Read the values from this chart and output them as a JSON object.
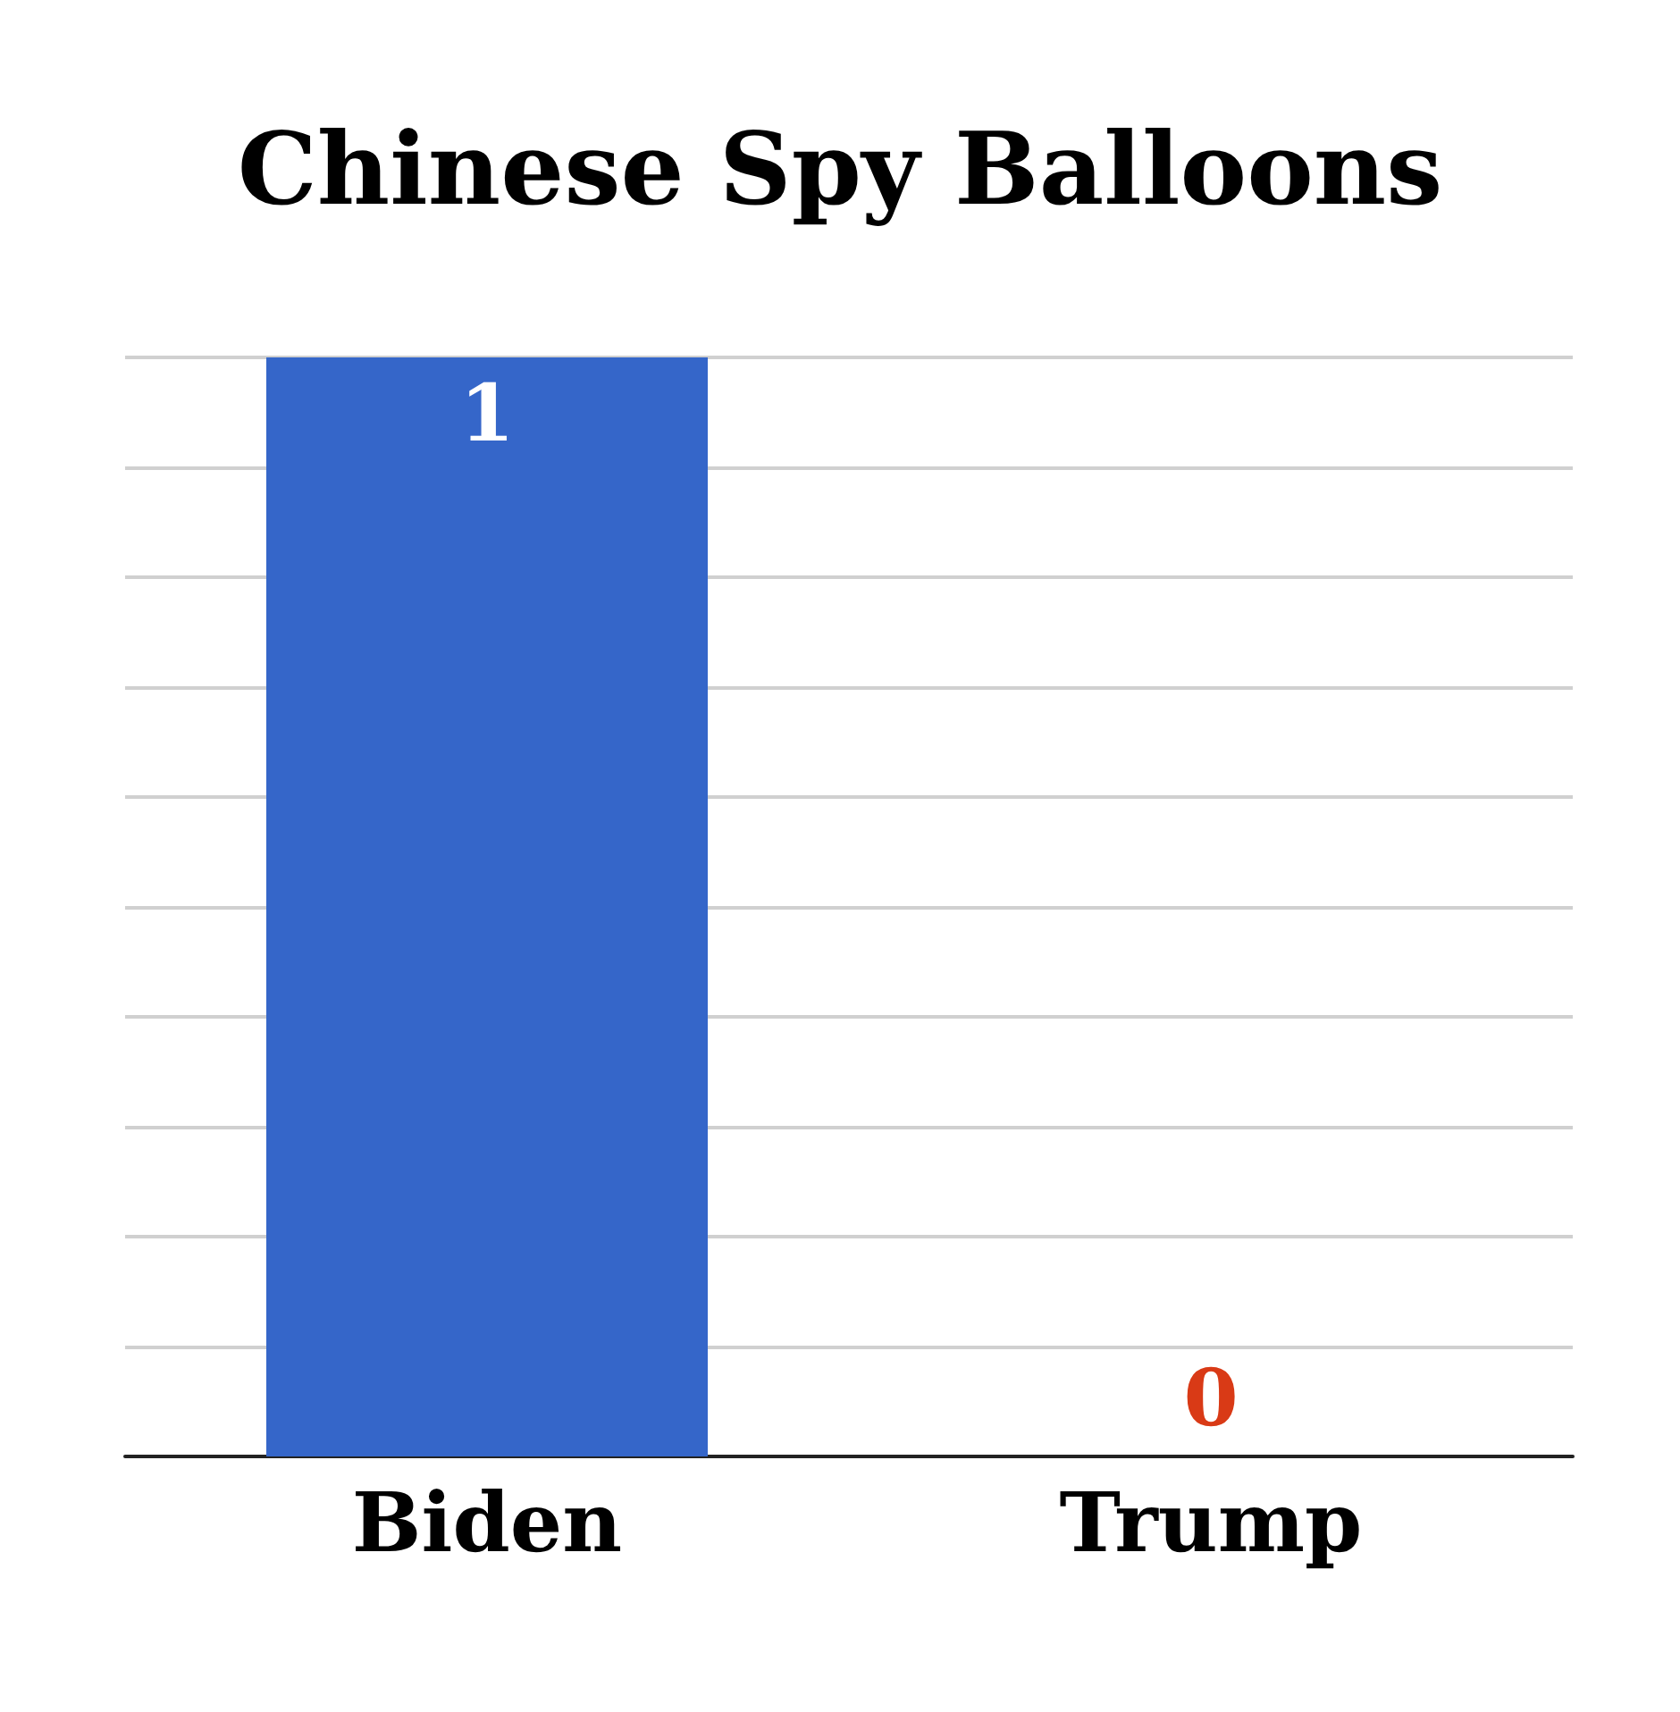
{
  "chart_data": {
    "type": "bar",
    "title": "Chinese Spy Balloons",
    "categories": [
      "Biden",
      "Trump"
    ],
    "values": [
      1,
      0
    ],
    "colors": [
      "#3566c9",
      "#d93a16"
    ],
    "data_labels": true,
    "grid": true
  }
}
